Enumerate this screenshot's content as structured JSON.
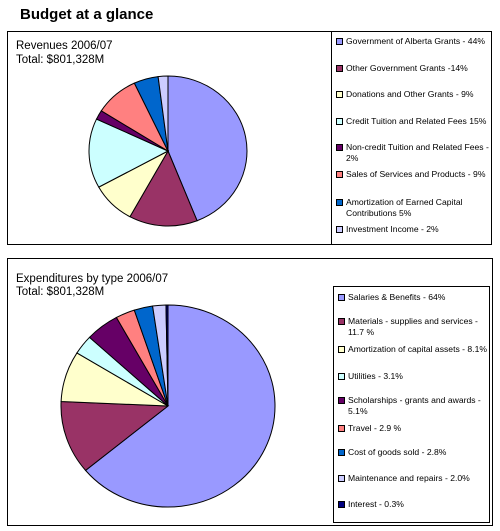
{
  "page_title": "Budget at a glance",
  "chart_data": [
    {
      "type": "pie",
      "title": "Revenues 2006/07",
      "subtitle": "Total:   $801,328M",
      "legend_position": "right",
      "slices": [
        {
          "label": "Government of Alberta Grants - 44%",
          "value": 44,
          "color": "#9999ff"
        },
        {
          "label": "Other Government Grants -14%",
          "value": 14,
          "color": "#993366"
        },
        {
          "label": "Donations and Other Grants - 9%",
          "value": 9,
          "color": "#ffffcc"
        },
        {
          "label": "Credit Tuition and Related Fees 15%",
          "value": 15,
          "color": "#ccffff"
        },
        {
          "label": "Non-credit Tuition and Related Fees - 2%",
          "value": 2,
          "color": "#660066"
        },
        {
          "label": "Sales of Services and Products - 9%",
          "value": 9,
          "color": "#ff8080"
        },
        {
          "label": "Amortization of Earned Capital Contributions 5%",
          "value": 5,
          "color": "#0066cc"
        },
        {
          "label": "Investment Income - 2%",
          "value": 2,
          "color": "#ccccff"
        }
      ]
    },
    {
      "type": "pie",
      "title": "Expenditures by type 2006/07",
      "subtitle": "Total:   $801,328M",
      "legend_position": "right",
      "slices": [
        {
          "label": "Salaries & Benefits - 64%",
          "value": 64,
          "color": "#9999ff"
        },
        {
          "label": "Materials - supplies and services - 11.7 %",
          "value": 11.7,
          "color": "#993366"
        },
        {
          "label": "Amortization of capital assets - 8.1%",
          "value": 8.1,
          "color": "#ffffcc"
        },
        {
          "label": "Utilities - 3.1%",
          "value": 3.1,
          "color": "#ccffff"
        },
        {
          "label": "Scholarships - grants and awards - 5.1%",
          "value": 5.1,
          "color": "#660066"
        },
        {
          "label": "Travel - 2.9 %",
          "value": 2.9,
          "color": "#ff8080"
        },
        {
          "label": "Cost of goods sold - 2.8%",
          "value": 2.8,
          "color": "#0066cc"
        },
        {
          "label": "Maintenance and repairs - 2.0%",
          "value": 2.0,
          "color": "#ccccff"
        },
        {
          "label": "Interest - 0.3%",
          "value": 0.3,
          "color": "#000080"
        }
      ]
    }
  ]
}
